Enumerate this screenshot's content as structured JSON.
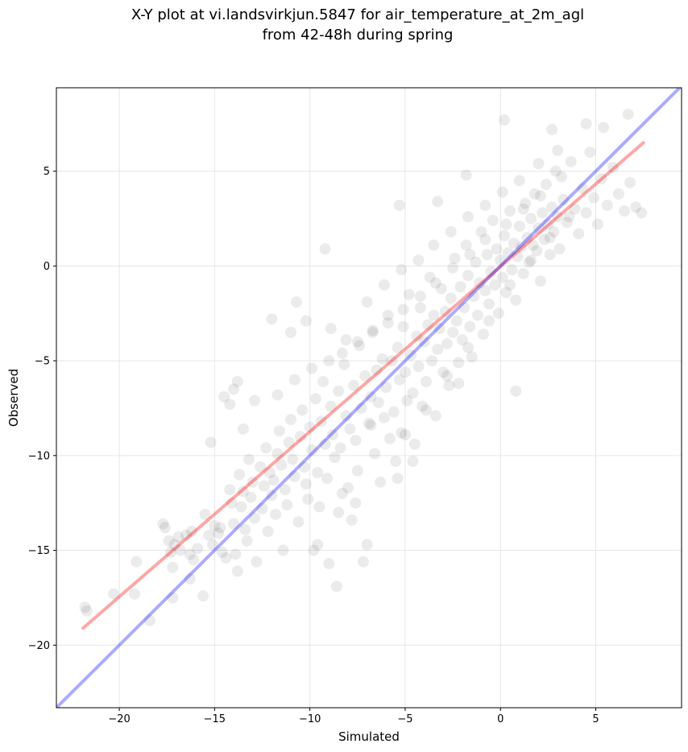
{
  "chart_data": {
    "type": "scatter",
    "title_lines": [
      "X-Y plot at vi.landsvirkjun.5847 for air_temperature_at_2m_agl",
      "from 42-48h during spring"
    ],
    "xlabel": "Simulated",
    "ylabel": "Observed",
    "xlim": [
      -23.3,
      9.5
    ],
    "ylim": [
      -23.3,
      9.4
    ],
    "xticks": [
      -20,
      -15,
      -10,
      -5,
      0,
      5
    ],
    "yticks": [
      -20,
      -15,
      -10,
      -5,
      0,
      5
    ],
    "xtick_labels": [
      "−20",
      "−15",
      "−10",
      "−5",
      "0",
      "5"
    ],
    "ytick_labels": [
      "−20",
      "−15",
      "−10",
      "−5",
      "0",
      "5"
    ],
    "grid": true,
    "series": [
      {
        "kind": "points",
        "color": "#000000",
        "alpha": 0.08,
        "note_visual": "dense cloud of semi-transparent black circles",
        "points": [
          [
            -21.8,
            -18.0
          ],
          [
            -21.7,
            -18.2
          ],
          [
            -20.3,
            -17.3
          ],
          [
            -19.2,
            -17.3
          ],
          [
            -19.1,
            -15.6
          ],
          [
            -18.4,
            -18.7
          ],
          [
            -17.7,
            -13.6
          ],
          [
            -17.6,
            -13.8
          ],
          [
            -17.4,
            -14.5
          ],
          [
            -17.3,
            -15.1
          ],
          [
            -17.2,
            -15.9
          ],
          [
            -17.1,
            -14.7
          ],
          [
            -17.2,
            -17.5
          ],
          [
            -16.9,
            -14.3
          ],
          [
            -16.8,
            -15.0
          ],
          [
            -16.5,
            -14.2
          ],
          [
            -16.3,
            -15.2
          ],
          [
            -16.2,
            -14.0
          ],
          [
            -16.3,
            -16.5
          ],
          [
            -16.1,
            -15.5
          ],
          [
            -15.9,
            -14.9
          ],
          [
            -15.5,
            -13.1
          ],
          [
            -15.6,
            -17.4
          ],
          [
            -15.3,
            -14.2
          ],
          [
            -15.1,
            -14.7
          ],
          [
            -15.0,
            -13.7
          ],
          [
            -14.8,
            -14.1
          ],
          [
            -14.7,
            -13.8
          ],
          [
            -14.6,
            -15.1
          ],
          [
            -14.4,
            -15.4
          ],
          [
            -14.2,
            -11.8
          ],
          [
            -14.1,
            -12.5
          ],
          [
            -14.0,
            -13.6
          ],
          [
            -13.9,
            -15.2
          ],
          [
            -13.8,
            -16.1
          ],
          [
            -13.7,
            -11.0
          ],
          [
            -13.6,
            -12.7
          ],
          [
            -13.5,
            -11.9
          ],
          [
            -13.4,
            -13.9
          ],
          [
            -13.3,
            -14.5
          ],
          [
            -13.2,
            -10.2
          ],
          [
            -13.1,
            -12.2
          ],
          [
            -13.0,
            -11.4
          ],
          [
            -12.9,
            -13.3
          ],
          [
            -12.8,
            -15.6
          ],
          [
            -12.6,
            -10.6
          ],
          [
            -12.5,
            -12.8
          ],
          [
            -12.4,
            -11.6
          ],
          [
            -12.3,
            -9.6
          ],
          [
            -12.2,
            -14.0
          ],
          [
            -12.1,
            -10.9
          ],
          [
            -12.0,
            -12.1
          ],
          [
            -11.9,
            -11.3
          ],
          [
            -11.8,
            -13.1
          ],
          [
            -11.7,
            -9.9
          ],
          [
            -11.6,
            -8.7
          ],
          [
            -11.5,
            -10.5
          ],
          [
            -11.4,
            -15.0
          ],
          [
            -11.3,
            -11.8
          ],
          [
            -11.2,
            -12.6
          ],
          [
            -11.1,
            -9.3
          ],
          [
            -11.0,
            -8.1
          ],
          [
            -10.9,
            -10.2
          ],
          [
            -10.8,
            -11.1
          ],
          [
            -10.6,
            -13.5
          ],
          [
            -10.5,
            -9.0
          ],
          [
            -10.4,
            -7.6
          ],
          [
            -10.3,
            -10.6
          ],
          [
            -10.2,
            -11.5
          ],
          [
            -10.1,
            -12.3
          ],
          [
            -10.0,
            -8.5
          ],
          [
            -9.9,
            -9.7
          ],
          [
            -9.8,
            -15.0
          ],
          [
            -9.7,
            -7.0
          ],
          [
            -9.6,
            -10.9
          ],
          [
            -9.5,
            -12.7
          ],
          [
            -9.4,
            -8.2
          ],
          [
            -9.3,
            -6.1
          ],
          [
            -9.2,
            -9.4
          ],
          [
            -9.1,
            -11.2
          ],
          [
            -9.0,
            -15.7
          ],
          [
            -8.9,
            -7.4
          ],
          [
            -8.8,
            -8.9
          ],
          [
            -8.7,
            -10.1
          ],
          [
            -8.6,
            -16.9
          ],
          [
            -8.5,
            -6.6
          ],
          [
            -8.4,
            -9.6
          ],
          [
            -8.3,
            -12.0
          ],
          [
            -8.2,
            -5.2
          ],
          [
            -8.1,
            -7.9
          ],
          [
            -8.0,
            -11.7
          ],
          [
            -7.9,
            -8.6
          ],
          [
            -7.8,
            -13.4
          ],
          [
            -7.7,
            -6.3
          ],
          [
            -7.6,
            -9.2
          ],
          [
            -7.5,
            -10.8
          ],
          [
            -7.4,
            -4.2
          ],
          [
            -7.3,
            -7.5
          ],
          [
            -7.2,
            -15.6
          ],
          [
            -7.1,
            -5.8
          ],
          [
            -7.0,
            -14.7
          ],
          [
            -6.9,
            -8.3
          ],
          [
            -6.8,
            -6.9
          ],
          [
            -6.7,
            -3.4
          ],
          [
            -6.6,
            -9.9
          ],
          [
            -6.5,
            -5.5
          ],
          [
            -6.4,
            -7.2
          ],
          [
            -6.3,
            -11.4
          ],
          [
            -6.2,
            -4.9
          ],
          [
            -6.1,
            -8.0
          ],
          [
            -6.0,
            -6.4
          ],
          [
            -5.9,
            -2.6
          ],
          [
            -5.8,
            -9.1
          ],
          [
            -5.7,
            -5.0
          ],
          [
            -5.6,
            -7.7
          ],
          [
            -5.5,
            -10.3
          ],
          [
            -5.4,
            -4.3
          ],
          [
            -5.3,
            -6.0
          ],
          [
            -5.2,
            -8.8
          ],
          [
            -5.1,
            -3.2
          ],
          [
            -5.0,
            -5.6
          ],
          [
            -4.9,
            -7.1
          ],
          [
            -4.8,
            -1.5
          ],
          [
            -4.7,
            -4.7
          ],
          [
            -4.6,
            -6.7
          ],
          [
            -4.5,
            -9.4
          ],
          [
            -4.4,
            -3.7
          ],
          [
            -4.3,
            -5.3
          ],
          [
            -4.2,
            -2.2
          ],
          [
            -4.1,
            -7.4
          ],
          [
            -4.0,
            -4.0
          ],
          [
            -3.9,
            -6.1
          ],
          [
            -3.8,
            -3.1
          ],
          [
            -3.7,
            -0.6
          ],
          [
            -3.6,
            -5.0
          ],
          [
            -3.5,
            -2.6
          ],
          [
            -3.4,
            -7.9
          ],
          [
            -3.3,
            -4.4
          ],
          [
            -3.2,
            -3.3
          ],
          [
            -3.1,
            -1.2
          ],
          [
            -3.0,
            -5.6
          ],
          [
            -2.9,
            -2.4
          ],
          [
            -2.8,
            -4.1
          ],
          [
            -2.7,
            -6.3
          ],
          [
            -2.6,
            -1.7
          ],
          [
            -2.5,
            -3.5
          ],
          [
            -2.4,
            0.4
          ],
          [
            -2.3,
            -2.9
          ],
          [
            -2.2,
            -5.1
          ],
          [
            -2.1,
            -1.1
          ],
          [
            -2.0,
            -3.9
          ],
          [
            -1.9,
            -2.2
          ],
          [
            -1.8,
            1.1
          ],
          [
            -1.7,
            -0.5
          ],
          [
            -1.6,
            -3.2
          ],
          [
            -1.5,
            -4.8
          ],
          [
            -1.4,
            -1.6
          ],
          [
            -1.3,
            0.2
          ],
          [
            -1.2,
            -2.6
          ],
          [
            -1.1,
            -0.9
          ],
          [
            -1.0,
            1.8
          ],
          [
            -0.9,
            -3.6
          ],
          [
            -0.8,
            -1.3
          ],
          [
            -0.7,
            0.6
          ],
          [
            -0.6,
            -2.0
          ],
          [
            -0.5,
            -0.3
          ],
          [
            -0.4,
            2.4
          ],
          [
            -0.3,
            -1.0
          ],
          [
            -0.2,
            0.9
          ],
          [
            -0.1,
            -2.5
          ],
          [
            0.0,
            0.3
          ],
          [
            0.1,
            -0.6
          ],
          [
            0.2,
            1.6
          ],
          [
            0.3,
            -1.4
          ],
          [
            0.4,
            0.7
          ],
          [
            0.5,
            2.9
          ],
          [
            0.6,
            -0.2
          ],
          [
            0.7,
            1.2
          ],
          [
            0.8,
            -1.8
          ],
          [
            0.9,
            0.5
          ],
          [
            1.0,
            2.1
          ],
          [
            1.1,
            1.0
          ],
          [
            1.2,
            -0.4
          ],
          [
            1.3,
            3.3
          ],
          [
            1.4,
            1.5
          ],
          [
            1.5,
            0.2
          ],
          [
            1.6,
            2.5
          ],
          [
            1.7,
            1.1
          ],
          [
            1.8,
            3.8
          ],
          [
            1.9,
            0.8
          ],
          [
            2.0,
            2.0
          ],
          [
            2.1,
            -0.8
          ],
          [
            2.2,
            2.8
          ],
          [
            2.3,
            1.4
          ],
          [
            2.4,
            4.3
          ],
          [
            2.5,
            2.2
          ],
          [
            2.6,
            0.6
          ],
          [
            2.7,
            3.1
          ],
          [
            2.8,
            1.8
          ],
          [
            2.9,
            5.0
          ],
          [
            3.0,
            2.6
          ],
          [
            3.1,
            0.9
          ],
          [
            3.3,
            3.5
          ],
          [
            3.5,
            2.3
          ],
          [
            3.7,
            5.5
          ],
          [
            3.9,
            3.0
          ],
          [
            4.1,
            1.7
          ],
          [
            4.3,
            4.1
          ],
          [
            4.5,
            2.8
          ],
          [
            4.7,
            6.0
          ],
          [
            4.9,
            3.6
          ],
          [
            5.1,
            2.2
          ],
          [
            5.3,
            4.6
          ],
          [
            5.6,
            3.2
          ],
          [
            5.9,
            5.2
          ],
          [
            6.2,
            3.8
          ],
          [
            6.5,
            2.9
          ],
          [
            6.8,
            4.4
          ],
          [
            7.1,
            3.1
          ],
          [
            7.4,
            2.8
          ],
          [
            5.4,
            7.3
          ],
          [
            6.7,
            8.0
          ],
          [
            0.2,
            7.7
          ],
          [
            2.7,
            7.2
          ],
          [
            4.5,
            7.5
          ],
          [
            -3.3,
            3.4
          ],
          [
            -1.8,
            4.8
          ],
          [
            -5.3,
            3.2
          ],
          [
            -9.2,
            0.9
          ],
          [
            -10.7,
            -1.9
          ],
          [
            -14.5,
            -6.9
          ],
          [
            -14.0,
            -6.5
          ],
          [
            -13.8,
            -6.1
          ],
          [
            -14.2,
            -7.3
          ],
          [
            -2.2,
            -6.2
          ],
          [
            0.8,
            -6.6
          ],
          [
            -4.6,
            -10.3
          ],
          [
            -5.4,
            -11.2
          ],
          [
            -9.6,
            -14.7
          ],
          [
            -8.5,
            -13.0
          ],
          [
            -7.6,
            -12.5
          ],
          [
            -6.8,
            -8.4
          ],
          [
            -5.0,
            -8.9
          ],
          [
            -3.9,
            -7.6
          ],
          [
            -2.8,
            -5.8
          ],
          [
            -1.7,
            -4.3
          ],
          [
            -0.6,
            -2.9
          ],
          [
            0.5,
            -1.0
          ],
          [
            1.6,
            0.3
          ],
          [
            2.6,
            1.5
          ],
          [
            3.6,
            2.6
          ],
          [
            -12.0,
            -2.8
          ],
          [
            -11.0,
            -3.5
          ],
          [
            -10.2,
            -2.9
          ],
          [
            -8.9,
            -3.3
          ],
          [
            -8.1,
            -3.9
          ],
          [
            -7.0,
            -1.9
          ],
          [
            -6.1,
            -1.0
          ],
          [
            -5.2,
            -0.2
          ],
          [
            -4.3,
            0.3
          ],
          [
            -3.5,
            1.1
          ],
          [
            -2.6,
            1.8
          ],
          [
            -1.7,
            2.6
          ],
          [
            -0.8,
            3.2
          ],
          [
            0.1,
            3.9
          ],
          [
            1.0,
            4.5
          ],
          [
            2.0,
            5.4
          ],
          [
            3.0,
            6.1
          ],
          [
            -15.2,
            -9.3
          ],
          [
            -13.5,
            -8.6
          ],
          [
            -12.9,
            -7.1
          ],
          [
            -11.7,
            -6.8
          ],
          [
            -10.8,
            -6.0
          ],
          [
            -9.9,
            -5.4
          ],
          [
            -9.0,
            -5.0
          ],
          [
            -8.3,
            -4.6
          ],
          [
            -7.5,
            -4.0
          ],
          [
            -6.7,
            -3.5
          ],
          [
            -5.9,
            -3.0
          ],
          [
            -5.1,
            -2.3
          ],
          [
            -4.2,
            -1.6
          ],
          [
            -3.4,
            -0.9
          ],
          [
            -2.5,
            -0.1
          ],
          [
            -1.6,
            0.6
          ],
          [
            -0.8,
            1.4
          ],
          [
            0.3,
            2.2
          ],
          [
            1.2,
            3.0
          ],
          [
            2.1,
            3.7
          ],
          [
            3.2,
            4.7
          ]
        ]
      },
      {
        "kind": "line",
        "color": "#ff0000",
        "alpha": 0.35,
        "x": [
          -21.9,
          7.5
        ],
        "y": [
          -19.1,
          6.5
        ]
      },
      {
        "kind": "line",
        "color": "#0000ff",
        "alpha": 0.33,
        "x": [
          -23.3,
          9.5
        ],
        "y": [
          -23.3,
          9.5
        ]
      }
    ]
  }
}
